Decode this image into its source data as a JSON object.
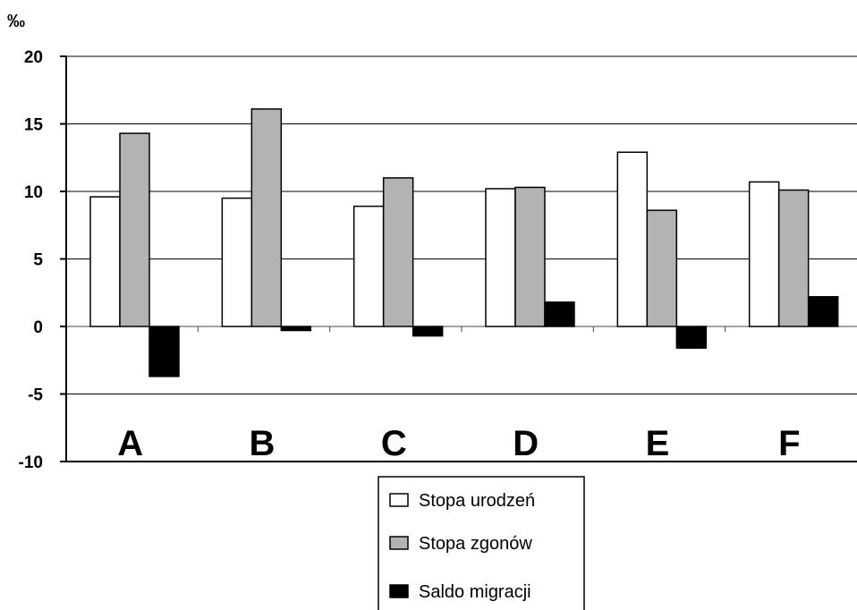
{
  "chart_data": {
    "type": "bar",
    "ylabel": "‰",
    "ylim": [
      -10,
      20
    ],
    "yticks": [
      -10,
      -5,
      0,
      5,
      10,
      15,
      20
    ],
    "grid": true,
    "legend_position": "bottom",
    "categories": [
      "A",
      "B",
      "C",
      "D",
      "E",
      "F"
    ],
    "series": [
      {
        "name": "Stopa urodzeń",
        "color": "#ffffff",
        "values": [
          9.6,
          9.5,
          8.9,
          10.2,
          12.9,
          10.7
        ]
      },
      {
        "name": "Stopa zgonów",
        "color": "#b3b3b3",
        "values": [
          14.3,
          16.1,
          11.0,
          10.3,
          8.6,
          10.1
        ]
      },
      {
        "name": "Saldo migracji",
        "color": "#000000",
        "values": [
          -3.7,
          -0.3,
          -0.7,
          1.8,
          -1.6,
          2.2
        ]
      }
    ]
  }
}
